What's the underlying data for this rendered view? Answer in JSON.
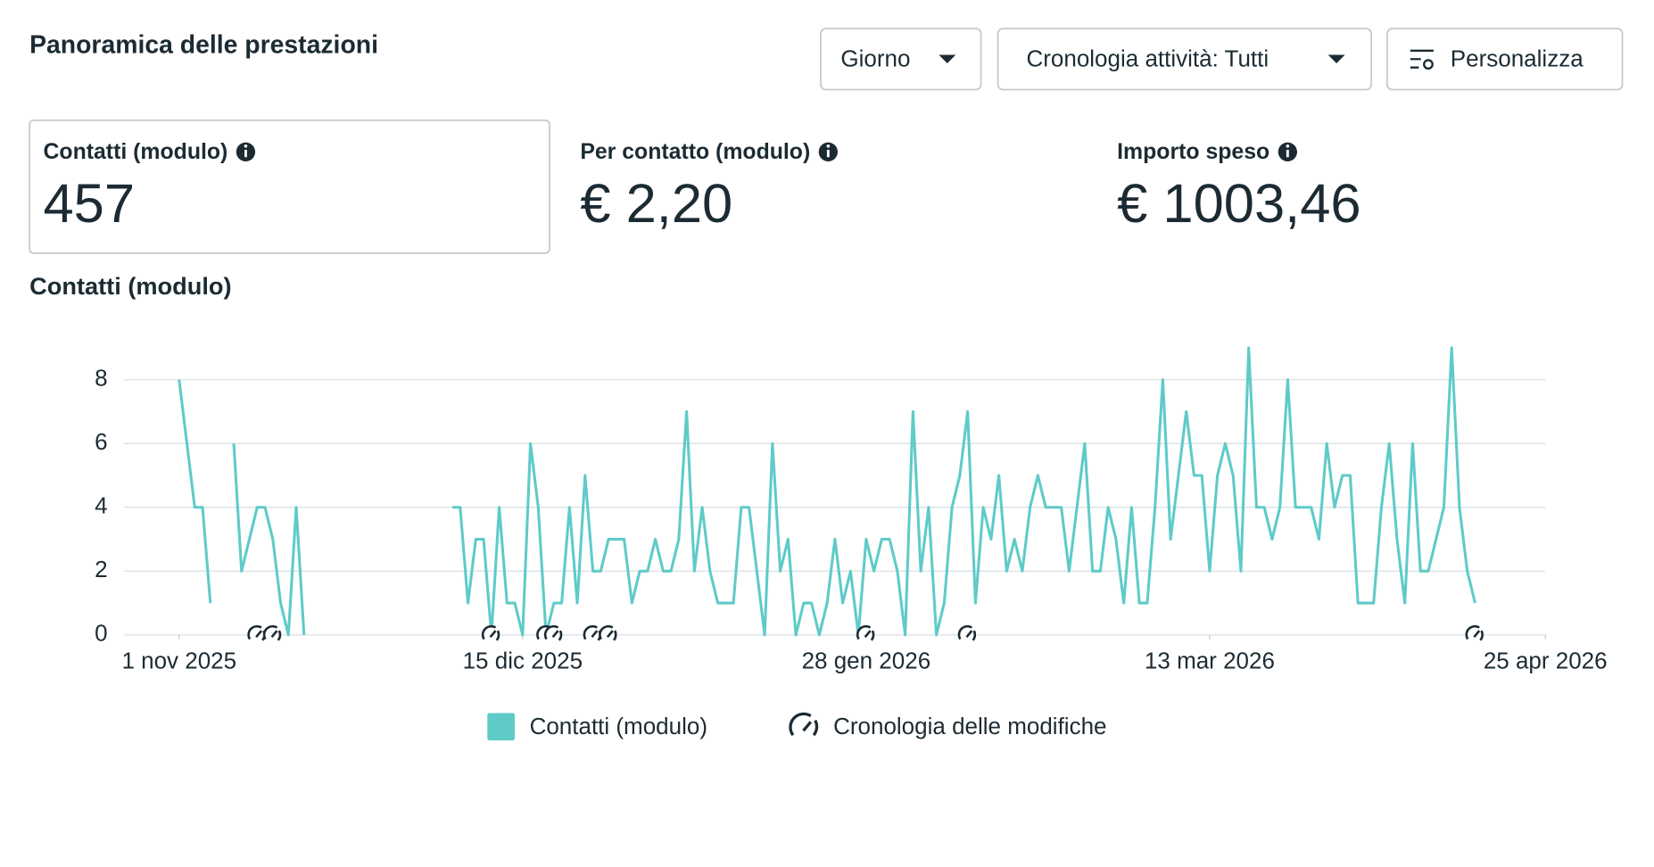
{
  "header": {
    "title": "Panoramica delle prestazioni",
    "buttons": [
      "Giorno",
      "Cronologia attività: Tutti",
      "Personalizza"
    ]
  },
  "metrics": [
    {
      "label": "Contatti (modulo)",
      "value": "457"
    },
    {
      "label": "Per contatto (modulo)",
      "value": "€ 2,20"
    },
    {
      "label": "Importo speso",
      "value": "€ 1003,46"
    }
  ],
  "chart_data": {
    "type": "line",
    "title": "Contatti (modulo)",
    "x": [
      "2025-11-01",
      "2025-11-02",
      "2025-11-03",
      "2025-11-04",
      "2025-11-05",
      "2025-11-06",
      "2025-11-07",
      "2025-11-08",
      "2025-11-09",
      "2025-11-10",
      "2025-11-11",
      "2025-11-12",
      "2025-11-13",
      "2025-11-14",
      "2025-11-15",
      "2025-11-16",
      "2025-11-17",
      "2025-11-18",
      "2025-11-19",
      "2025-11-20",
      "2025-11-21",
      "2025-11-22",
      "2025-11-23",
      "2025-11-24",
      "2025-11-25",
      "2025-11-26",
      "2025-11-27",
      "2025-11-28",
      "2025-11-29",
      "2025-11-30",
      "2025-12-01",
      "2025-12-02",
      "2025-12-03",
      "2025-12-04",
      "2025-12-05",
      "2025-12-06",
      "2025-12-07",
      "2025-12-08",
      "2025-12-09",
      "2025-12-10",
      "2025-12-11",
      "2025-12-12",
      "2025-12-13",
      "2025-12-14",
      "2025-12-15",
      "2025-12-16",
      "2025-12-17",
      "2025-12-18",
      "2025-12-19",
      "2025-12-20",
      "2025-12-21",
      "2025-12-22",
      "2025-12-23",
      "2025-12-24",
      "2025-12-25",
      "2025-12-26",
      "2025-12-27",
      "2025-12-28",
      "2025-12-29",
      "2025-12-30",
      "2025-12-31",
      "2026-01-01",
      "2026-01-02",
      "2026-01-03",
      "2026-01-04",
      "2026-01-05",
      "2026-01-06",
      "2026-01-07",
      "2026-01-08",
      "2026-01-09",
      "2026-01-10",
      "2026-01-11",
      "2026-01-12",
      "2026-01-13",
      "2026-01-14",
      "2026-01-15",
      "2026-01-16",
      "2026-01-17",
      "2026-01-18",
      "2026-01-19",
      "2026-01-20",
      "2026-01-21",
      "2026-01-22",
      "2026-01-23",
      "2026-01-24",
      "2026-01-25",
      "2026-01-26",
      "2026-01-27",
      "2026-01-28",
      "2026-01-29",
      "2026-01-30",
      "2026-01-31",
      "2026-02-01",
      "2026-02-02",
      "2026-02-03",
      "2026-02-04",
      "2026-02-05",
      "2026-02-06",
      "2026-02-07",
      "2026-02-08",
      "2026-02-09",
      "2026-02-10",
      "2026-02-11",
      "2026-02-12",
      "2026-02-13",
      "2026-02-14",
      "2026-02-15",
      "2026-02-16",
      "2026-02-17",
      "2026-02-18",
      "2026-02-19",
      "2026-02-20",
      "2026-02-21",
      "2026-02-22",
      "2026-02-23",
      "2026-02-24",
      "2026-02-25",
      "2026-02-26",
      "2026-02-27",
      "2026-02-28",
      "2026-03-01",
      "2026-03-02",
      "2026-03-03",
      "2026-03-04",
      "2026-03-05",
      "2026-03-06",
      "2026-03-07",
      "2026-03-08",
      "2026-03-09",
      "2026-03-10",
      "2026-03-11",
      "2026-03-12",
      "2026-03-13",
      "2026-03-14",
      "2026-03-15",
      "2026-03-16",
      "2026-03-17",
      "2026-03-18",
      "2026-03-19",
      "2026-03-20",
      "2026-03-21",
      "2026-03-22",
      "2026-03-23",
      "2026-03-24",
      "2026-03-25",
      "2026-03-26",
      "2026-03-27",
      "2026-03-28",
      "2026-03-29",
      "2026-03-30",
      "2026-03-31",
      "2026-04-01",
      "2026-04-02",
      "2026-04-03",
      "2026-04-04",
      "2026-04-05",
      "2026-04-06",
      "2026-04-07",
      "2026-04-08",
      "2026-04-09",
      "2026-04-10",
      "2026-04-11",
      "2026-04-12",
      "2026-04-13",
      "2026-04-14",
      "2026-04-15",
      "2026-04-16"
    ],
    "series": [
      {
        "name": "Contatti (modulo)",
        "color": "#5ecbc8",
        "values": [
          8,
          6,
          4,
          4,
          1,
          null,
          null,
          6,
          2,
          3,
          4,
          4,
          3,
          1,
          0,
          4,
          0,
          null,
          null,
          null,
          null,
          null,
          null,
          null,
          null,
          null,
          null,
          null,
          null,
          null,
          null,
          null,
          null,
          null,
          null,
          4,
          4,
          1,
          3,
          3,
          0,
          4,
          1,
          1,
          0,
          6,
          4,
          0,
          1,
          1,
          4,
          1,
          5,
          2,
          2,
          3,
          3,
          3,
          1,
          2,
          2,
          3,
          2,
          2,
          3,
          7,
          2,
          4,
          2,
          1,
          1,
          1,
          4,
          4,
          2,
          0,
          6,
          2,
          3,
          0,
          1,
          1,
          0,
          1,
          3,
          1,
          2,
          0,
          3,
          2,
          3,
          3,
          2,
          0,
          7,
          2,
          4,
          0,
          1,
          4,
          5,
          7,
          1,
          4,
          3,
          5,
          2,
          3,
          2,
          4,
          5,
          4,
          4,
          4,
          2,
          4,
          6,
          2,
          2,
          4,
          3,
          1,
          4,
          1,
          1,
          4,
          8,
          3,
          5,
          7,
          5,
          5,
          2,
          5,
          6,
          5,
          2,
          9,
          4,
          4,
          3,
          4,
          8,
          4,
          4,
          4,
          3,
          6,
          4,
          5,
          5,
          1,
          1,
          1,
          4,
          6,
          3,
          1,
          6,
          2,
          2,
          3,
          4,
          9,
          4,
          2,
          1
        ]
      }
    ],
    "events": {
      "name": "Cronologia delle modifiche",
      "x": [
        "2025-11-11",
        "2025-11-13",
        "2025-12-11",
        "2025-12-18",
        "2025-12-19",
        "2025-12-24",
        "2025-12-26",
        "2026-01-28",
        "2026-02-10",
        "2026-04-16"
      ]
    },
    "xlim": [
      "2025-10-25",
      "2026-04-25"
    ],
    "xticks": [
      {
        "value": "2025-11-01",
        "label": "1 nov 2025"
      },
      {
        "value": "2025-12-15",
        "label": "15 dic 2025"
      },
      {
        "value": "2026-01-28",
        "label": "28 gen 2026"
      },
      {
        "value": "2026-03-13",
        "label": "13 mar 2026"
      },
      {
        "value": "2026-04-25",
        "label": "25 apr 2026"
      }
    ],
    "ylim": [
      0,
      9
    ],
    "yticks": [
      0,
      2,
      4,
      6,
      8
    ],
    "grid": true
  }
}
